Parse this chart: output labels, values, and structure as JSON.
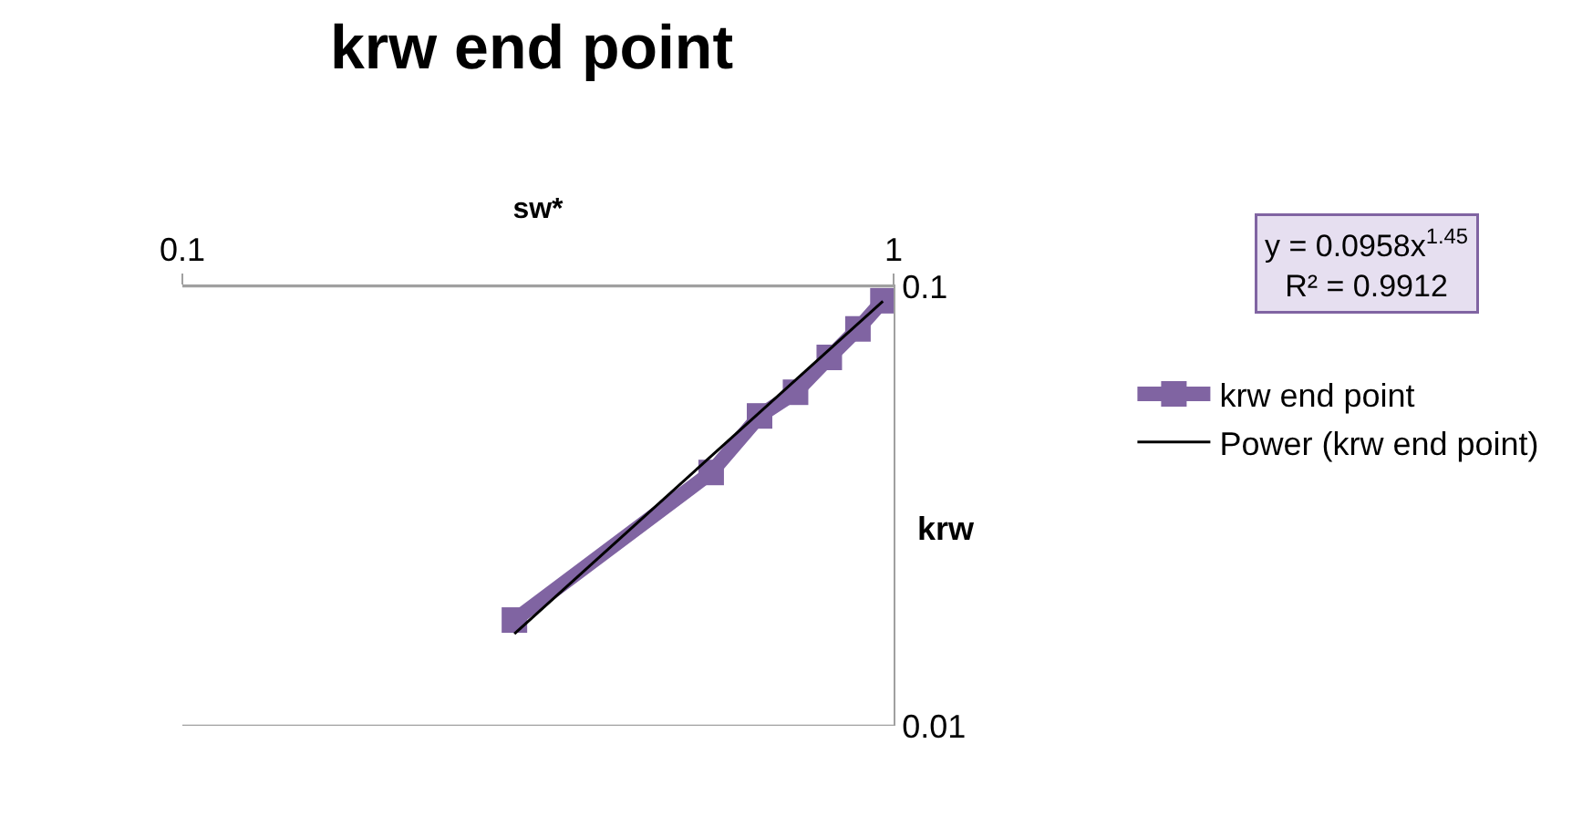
{
  "chart_data": {
    "type": "line",
    "title": "krw end point",
    "xlabel": "sw*",
    "ylabel": "krw",
    "log": "xy",
    "xlim": [
      0.1,
      1
    ],
    "xticks": [
      0.1,
      1
    ],
    "ylim": [
      0.01,
      0.1
    ],
    "yticks": [
      0.1,
      0.01
    ],
    "grid": "y",
    "legend": "right",
    "marker": "square",
    "line_style": "solid",
    "x": [
      0.293,
      0.554,
      0.648,
      0.728,
      0.812,
      0.891,
      0.966
    ],
    "series": [
      {
        "name": "krw end point",
        "color": "#8064a2",
        "values": [
          0.0174,
          0.0377,
          0.0507,
          0.0574,
          0.0689,
          0.08,
          0.0927
        ]
      },
      {
        "name": "Power (krw end point)",
        "type": "line",
        "color": "#000000",
        "marker": "none",
        "x": [
          0.293,
          0.966
        ],
        "values": [
          0.0162,
          0.0925
        ]
      }
    ],
    "annotations": [
      "y = 0.0958x$^{1.45}$",
      "R² = 0.9912"
    ]
  }
}
